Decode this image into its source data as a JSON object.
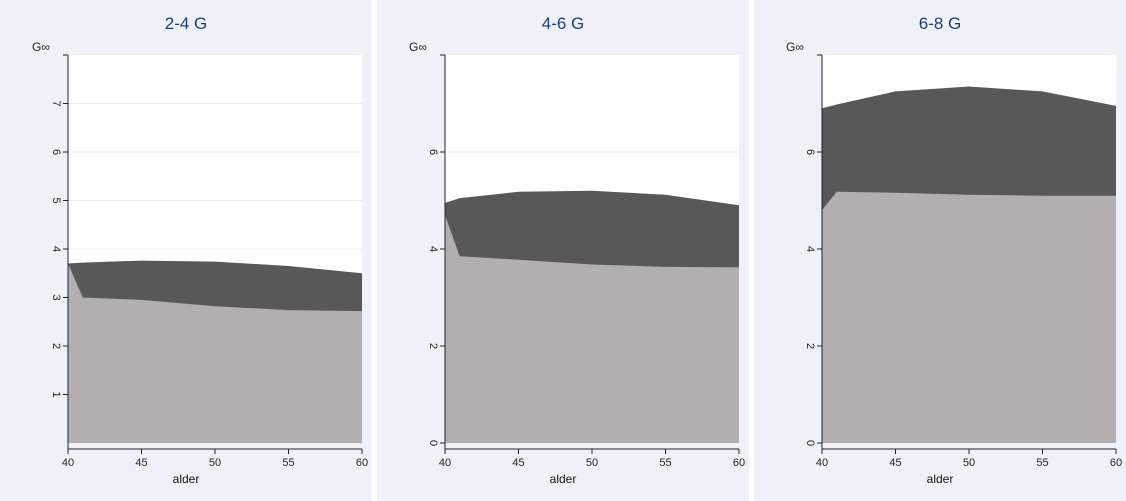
{
  "chart_data": [
    {
      "type": "area",
      "title": "2-4 G",
      "xlabel": "alder",
      "ylabel": "G∞",
      "xlim": [
        40,
        60
      ],
      "ylim": [
        0,
        8
      ],
      "xticks": [
        40,
        45,
        50,
        55,
        60
      ],
      "yticks": [
        1,
        2,
        3,
        4,
        5,
        6,
        7
      ],
      "grid": true,
      "x": [
        40,
        41,
        45,
        50,
        55,
        60
      ],
      "series": [
        {
          "color": "#b3afb1",
          "values": [
            3.7,
            3.0,
            2.95,
            2.82,
            2.74,
            2.72
          ]
        },
        {
          "color": "#585858",
          "values": [
            3.7,
            3.72,
            3.76,
            3.74,
            3.65,
            3.5
          ]
        }
      ]
    },
    {
      "type": "area",
      "title": "4-6 G",
      "xlabel": "alder",
      "ylabel": "G∞",
      "xlim": [
        40,
        60
      ],
      "ylim": [
        0,
        8
      ],
      "xticks": [
        40,
        45,
        50,
        55,
        60
      ],
      "yticks": [
        0,
        2,
        4,
        6
      ],
      "grid": true,
      "x": [
        40,
        41,
        45,
        50,
        55,
        60
      ],
      "series": [
        {
          "color": "#b3afb1",
          "values": [
            4.7,
            3.85,
            3.78,
            3.68,
            3.63,
            3.62
          ]
        },
        {
          "color": "#585858",
          "values": [
            4.95,
            5.05,
            5.18,
            5.2,
            5.12,
            4.9
          ]
        }
      ]
    },
    {
      "type": "area",
      "title": "6-8 G",
      "xlabel": "alder",
      "ylabel": "G∞",
      "xlim": [
        40,
        60
      ],
      "ylim": [
        0,
        8
      ],
      "xticks": [
        40,
        45,
        50,
        55,
        60
      ],
      "yticks": [
        0,
        2,
        4,
        6
      ],
      "grid": true,
      "x": [
        40,
        41,
        45,
        50,
        55,
        60
      ],
      "series": [
        {
          "color": "#b3afb1",
          "values": [
            4.8,
            5.18,
            5.16,
            5.12,
            5.1,
            5.1
          ]
        },
        {
          "color": "#585858",
          "values": [
            6.9,
            6.98,
            7.25,
            7.35,
            7.25,
            6.95
          ]
        }
      ]
    }
  ]
}
